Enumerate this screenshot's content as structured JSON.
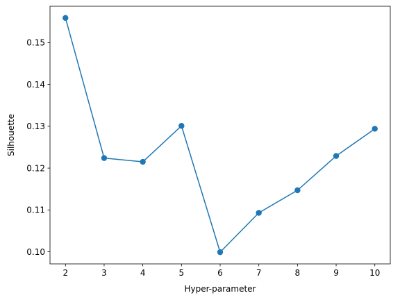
{
  "chart_data": {
    "type": "line",
    "xlabel": "Hyper-parameter",
    "ylabel": "Silhouette",
    "x": [
      2,
      3,
      4,
      5,
      6,
      7,
      8,
      9,
      10
    ],
    "series": [
      {
        "values": [
          0.1559,
          0.1224,
          0.1215,
          0.1301,
          0.0999,
          0.1093,
          0.1147,
          0.1229,
          0.1294
        ],
        "color": "#1f77b4",
        "marker": "circle"
      }
    ],
    "xlim": [
      1.6,
      10.4
    ],
    "ylim": [
      0.0971,
      0.1587
    ],
    "xticks": [
      "2",
      "3",
      "4",
      "5",
      "6",
      "7",
      "8",
      "9",
      "10"
    ],
    "yticks": [
      "0.10",
      "0.11",
      "0.12",
      "0.13",
      "0.14",
      "0.15"
    ],
    "grid": false,
    "legend": false
  }
}
